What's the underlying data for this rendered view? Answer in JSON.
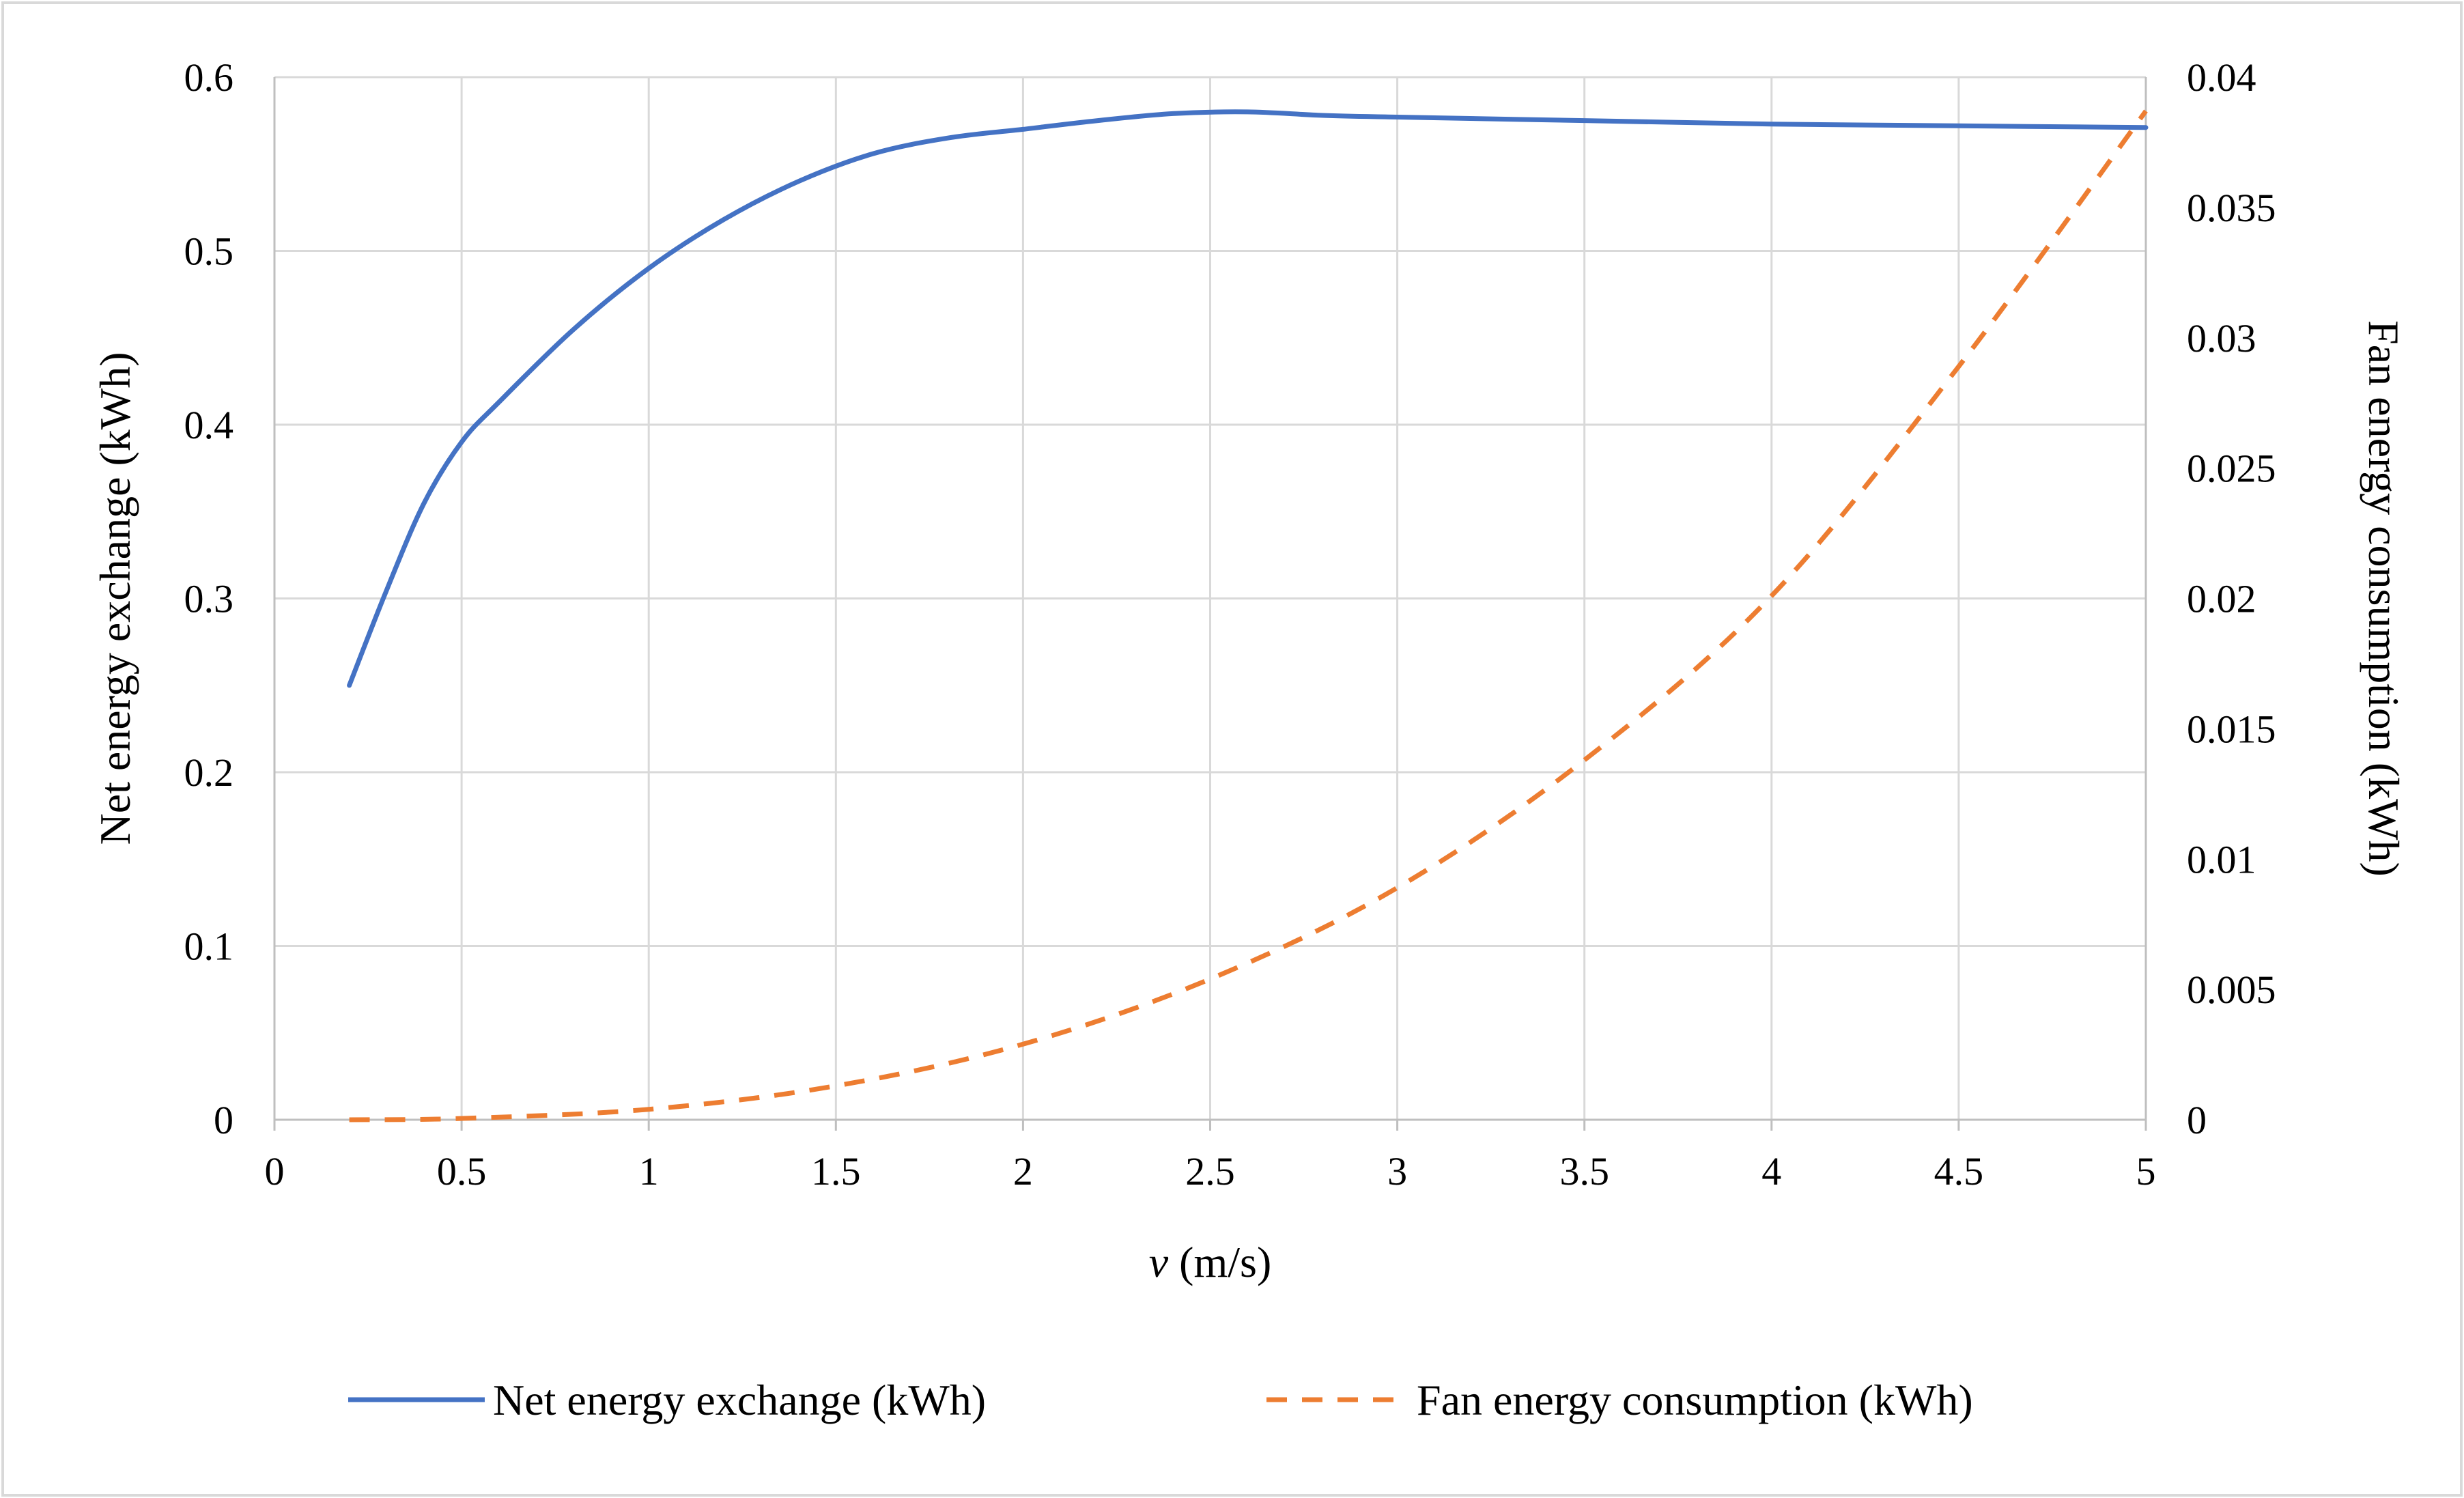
{
  "chart_data": {
    "type": "line",
    "title": "",
    "xlabel_var": "v",
    "xlabel_unit": " (m/s)",
    "ylabel": "Net energy exchange (kWh)",
    "y2label": "Fan energy consumption (kWh)",
    "xlim": [
      0,
      5
    ],
    "ylim": [
      0,
      0.6
    ],
    "y2lim": [
      0,
      0.04
    ],
    "xticks": [
      0,
      0.5,
      1,
      1.5,
      2,
      2.5,
      3,
      3.5,
      4,
      4.5,
      5
    ],
    "xtick_labels": [
      "0",
      "0.5",
      "1",
      "1.5",
      "2",
      "2.5",
      "3",
      "3.5",
      "4",
      "4.5",
      "5"
    ],
    "yticks": [
      0,
      0.1,
      0.2,
      0.3,
      0.4,
      0.5,
      0.6
    ],
    "ytick_labels": [
      "0",
      "0.1",
      "0.2",
      "0.3",
      "0.4",
      "0.5",
      "0.6"
    ],
    "y2ticks": [
      0,
      0.005,
      0.01,
      0.015,
      0.02,
      0.025,
      0.03,
      0.035,
      0.04
    ],
    "y2tick_labels": [
      "0",
      "0.005",
      "0.01",
      "0.015",
      "0.02",
      "0.025",
      "0.03",
      "0.035",
      "0.04"
    ],
    "grid": true,
    "legend_position": "bottom",
    "series": [
      {
        "name": "Net energy exchange (kWh)",
        "axis": "left",
        "color": "#4472C4",
        "style": "solid",
        "x": [
          0.2,
          0.3,
          0.4,
          0.5,
          0.6,
          0.8,
          1.0,
          1.2,
          1.4,
          1.6,
          1.8,
          2.0,
          2.2,
          2.4,
          2.6,
          2.8,
          3.0,
          3.5,
          4.0,
          4.5,
          5.0
        ],
        "y": [
          0.25,
          0.305,
          0.355,
          0.39,
          0.413,
          0.455,
          0.49,
          0.518,
          0.54,
          0.556,
          0.565,
          0.57,
          0.575,
          0.579,
          0.58,
          0.578,
          0.577,
          0.575,
          0.573,
          0.572,
          0.571
        ]
      },
      {
        "name": "Fan energy consumption (kWh)",
        "axis": "right",
        "color": "#ED7D31",
        "style": "dashed",
        "x": [
          0.2,
          0.5,
          1.0,
          1.5,
          2.0,
          2.5,
          3.0,
          3.5,
          4.0,
          4.5,
          5.0
        ],
        "y": [
          0.0,
          5e-05,
          0.0004,
          0.0013,
          0.0029,
          0.0054,
          0.0089,
          0.0138,
          0.0201,
          0.0289,
          0.0387
        ]
      }
    ]
  }
}
